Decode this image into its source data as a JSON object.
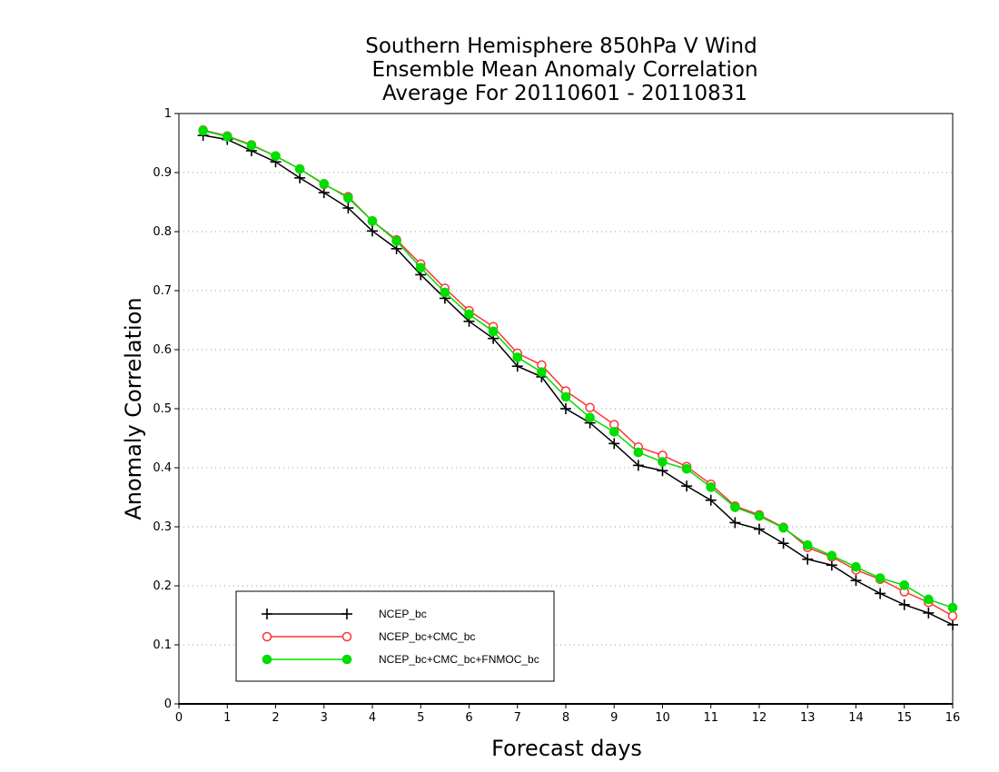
{
  "chart_data": {
    "type": "line",
    "title_lines": [
      "Southern Hemisphere 850hPa V Wind",
      "Ensemble Mean Anomaly Correlation",
      "Average For 20110601 - 20110831"
    ],
    "xlabel": "Forecast days",
    "ylabel": "Anomaly Correlation",
    "xlim": [
      0,
      16
    ],
    "ylim": [
      0,
      1
    ],
    "x_ticks": [
      "0",
      "1",
      "2",
      "3",
      "4",
      "5",
      "6",
      "7",
      "8",
      "9",
      "10",
      "11",
      "12",
      "13",
      "14",
      "15",
      "16"
    ],
    "y_ticks": [
      "0",
      "0.1",
      "0.2",
      "0.3",
      "0.4",
      "0.5",
      "0.6",
      "0.7",
      "0.8",
      "0.9",
      "1"
    ],
    "grid": "horizontal dotted",
    "legend_position": "bottom-left",
    "x": [
      0.5,
      1,
      1.5,
      2,
      2.5,
      3,
      3.5,
      4,
      4.5,
      5,
      5.5,
      6,
      6.5,
      7,
      7.5,
      8,
      8.5,
      9,
      9.5,
      10,
      10.5,
      11,
      11.5,
      12,
      12.5,
      13,
      13.5,
      14,
      14.5,
      15,
      15.5,
      16
    ],
    "series": [
      {
        "name": "NCEP_bc",
        "color": "#000000",
        "marker": "plus",
        "values": [
          0.963,
          0.956,
          0.937,
          0.918,
          0.891,
          0.866,
          0.84,
          0.801,
          0.771,
          0.727,
          0.687,
          0.648,
          0.619,
          0.572,
          0.554,
          0.5,
          0.476,
          0.441,
          0.404,
          0.395,
          0.369,
          0.345,
          0.307,
          0.296,
          0.272,
          0.245,
          0.235,
          0.209,
          0.187,
          0.168,
          0.154,
          0.134
        ]
      },
      {
        "name": "NCEP_bc+CMC_bc",
        "color": "#ff3333",
        "marker": "open-circle",
        "values": [
          0.972,
          0.962,
          0.947,
          0.928,
          0.906,
          0.88,
          0.859,
          0.818,
          0.786,
          0.745,
          0.704,
          0.666,
          0.639,
          0.594,
          0.574,
          0.53,
          0.502,
          0.473,
          0.435,
          0.421,
          0.402,
          0.372,
          0.335,
          0.32,
          0.299,
          0.265,
          0.249,
          0.227,
          0.211,
          0.19,
          0.172,
          0.149
        ]
      },
      {
        "name": "NCEP_bc+CMC_bc+FNMOC_bc",
        "color": "#00dd00",
        "marker": "filled-circle",
        "values": [
          0.971,
          0.961,
          0.946,
          0.928,
          0.906,
          0.881,
          0.857,
          0.818,
          0.784,
          0.739,
          0.697,
          0.66,
          0.631,
          0.587,
          0.562,
          0.52,
          0.485,
          0.461,
          0.426,
          0.41,
          0.398,
          0.367,
          0.333,
          0.318,
          0.298,
          0.269,
          0.251,
          0.232,
          0.213,
          0.201,
          0.177,
          0.163
        ]
      }
    ]
  }
}
